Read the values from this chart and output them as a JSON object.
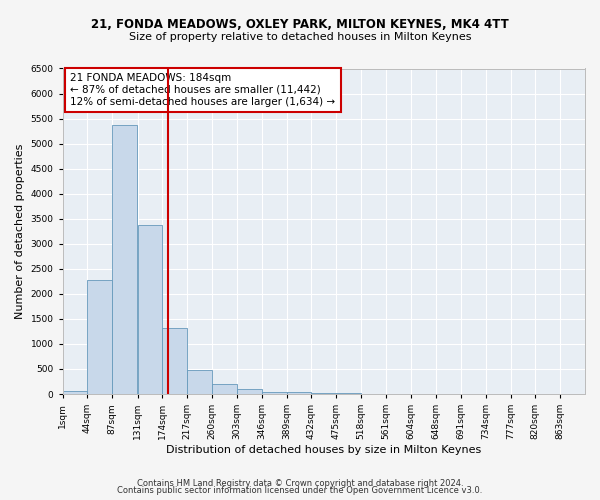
{
  "title_line1": "21, FONDA MEADOWS, OXLEY PARK, MILTON KEYNES, MK4 4TT",
  "title_line2": "Size of property relative to detached houses in Milton Keynes",
  "xlabel": "Distribution of detached houses by size in Milton Keynes",
  "ylabel": "Number of detached properties",
  "footer_line1": "Contains HM Land Registry data © Crown copyright and database right 2024.",
  "footer_line2": "Contains public sector information licensed under the Open Government Licence v3.0.",
  "annotation_line1": "21 FONDA MEADOWS: 184sqm",
  "annotation_line2": "← 87% of detached houses are smaller (11,442)",
  "annotation_line3": "12% of semi-detached houses are larger (1,634) →",
  "bin_edges": [
    1,
    44,
    87,
    131,
    174,
    217,
    260,
    303,
    346,
    389,
    432,
    475,
    518,
    561,
    604,
    648,
    691,
    734,
    777,
    820,
    863
  ],
  "bar_values": [
    70,
    2280,
    5380,
    3380,
    1310,
    490,
    195,
    95,
    50,
    35,
    20,
    12,
    6,
    4,
    2,
    1,
    1,
    0,
    0,
    0
  ],
  "tick_labels": [
    "1sqm",
    "44sqm",
    "87sqm",
    "131sqm",
    "174sqm",
    "217sqm",
    "260sqm",
    "303sqm",
    "346sqm",
    "389sqm",
    "432sqm",
    "475sqm",
    "518sqm",
    "561sqm",
    "604sqm",
    "648sqm",
    "691sqm",
    "734sqm",
    "777sqm",
    "820sqm",
    "863sqm"
  ],
  "bar_color": "#c8d8ea",
  "bar_edgecolor": "#6699bb",
  "vline_color": "#cc0000",
  "vline_x": 184,
  "ylim": [
    0,
    6500
  ],
  "yticks": [
    0,
    500,
    1000,
    1500,
    2000,
    2500,
    3000,
    3500,
    4000,
    4500,
    5000,
    5500,
    6000,
    6500
  ],
  "bg_color": "#e8eef4",
  "grid_color": "#ffffff",
  "fig_bg": "#f5f5f5",
  "title_fontsize": 8.5,
  "subtitle_fontsize": 8,
  "ylabel_fontsize": 8,
  "xlabel_fontsize": 8,
  "tick_fontsize": 6.5,
  "footer_fontsize": 6,
  "annotation_fontsize": 7.5
}
